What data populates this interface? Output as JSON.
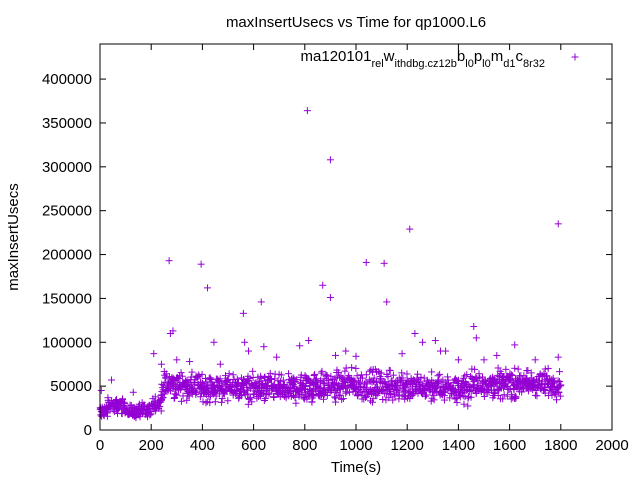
{
  "chart_data": {
    "type": "scatter",
    "title": "maxInsertUsecs vs Time for qp1000.L6",
    "xlabel": "Time(s)",
    "ylabel": "maxInsertUsecs",
    "xlim": [
      0,
      2000
    ],
    "ylim": [
      0,
      440000
    ],
    "x_ticks": [
      0,
      200,
      400,
      600,
      800,
      1000,
      1200,
      1400,
      1600,
      1800,
      2000
    ],
    "x_tick_labels": [
      "0",
      "200",
      "400",
      "600",
      "800",
      "1000",
      "1200",
      "1400",
      "1600",
      "1800",
      "2000"
    ],
    "y_ticks": [
      0,
      50000,
      100000,
      150000,
      200000,
      250000,
      300000,
      350000,
      400000
    ],
    "y_tick_labels": [
      "0",
      "50000",
      "100000",
      "150000",
      "200000",
      "250000",
      "300000",
      "350000",
      "400000"
    ],
    "legend_position": "top-right",
    "series": [
      {
        "name": "ma120101_rel_withdbg.cz12b_bl0_pl0_md1_c8r32",
        "legend_parts": [
          {
            "text": "ma120101",
            "sub": false
          },
          {
            "text": "rel",
            "sub": true
          },
          {
            "text": "w",
            "sub": false
          },
          {
            "text": "ithdbg.cz12b",
            "sub": true
          },
          {
            "text": "b",
            "sub": false
          },
          {
            "text": "l0",
            "sub": true
          },
          {
            "text": "p",
            "sub": false
          },
          {
            "text": "l0",
            "sub": true
          },
          {
            "text": "m",
            "sub": false
          },
          {
            "text": "d1",
            "sub": true
          },
          {
            "text": "c",
            "sub": false
          },
          {
            "text": "8r32",
            "sub": true
          }
        ],
        "marker": "+",
        "color": "#9400d3",
        "bands": [
          {
            "x_start": 0,
            "x_end": 30,
            "low": 8000,
            "high": 35000
          },
          {
            "x_start": 30,
            "x_end": 100,
            "low": 15000,
            "high": 40000
          },
          {
            "x_start": 100,
            "x_end": 200,
            "low": 10000,
            "high": 32000
          },
          {
            "x_start": 200,
            "x_end": 240,
            "low": 15000,
            "high": 45000
          },
          {
            "x_start": 240,
            "x_end": 400,
            "low": 30000,
            "high": 70000
          },
          {
            "x_start": 400,
            "x_end": 800,
            "low": 25000,
            "high": 70000
          },
          {
            "x_start": 800,
            "x_end": 1200,
            "low": 25000,
            "high": 75000
          },
          {
            "x_start": 1200,
            "x_end": 1450,
            "low": 25000,
            "high": 70000
          },
          {
            "x_start": 1450,
            "x_end": 1800,
            "low": 30000,
            "high": 75000
          }
        ],
        "outliers": [
          {
            "x": 5,
            "y": 45000
          },
          {
            "x": 45,
            "y": 57000
          },
          {
            "x": 130,
            "y": 43000
          },
          {
            "x": 210,
            "y": 87000
          },
          {
            "x": 240,
            "y": 75000
          },
          {
            "x": 270,
            "y": 193000
          },
          {
            "x": 275,
            "y": 110000
          },
          {
            "x": 285,
            "y": 113000
          },
          {
            "x": 300,
            "y": 80000
          },
          {
            "x": 350,
            "y": 78000
          },
          {
            "x": 395,
            "y": 189000
          },
          {
            "x": 420,
            "y": 162000
          },
          {
            "x": 445,
            "y": 100000
          },
          {
            "x": 470,
            "y": 75000
          },
          {
            "x": 560,
            "y": 133000
          },
          {
            "x": 565,
            "y": 100000
          },
          {
            "x": 580,
            "y": 90000
          },
          {
            "x": 630,
            "y": 146000
          },
          {
            "x": 640,
            "y": 95000
          },
          {
            "x": 690,
            "y": 83000
          },
          {
            "x": 780,
            "y": 96000
          },
          {
            "x": 810,
            "y": 364000
          },
          {
            "x": 815,
            "y": 102000
          },
          {
            "x": 870,
            "y": 165000
          },
          {
            "x": 900,
            "y": 308000
          },
          {
            "x": 900,
            "y": 151000
          },
          {
            "x": 920,
            "y": 85000
          },
          {
            "x": 960,
            "y": 90000
          },
          {
            "x": 1000,
            "y": 84000
          },
          {
            "x": 1040,
            "y": 191000
          },
          {
            "x": 1110,
            "y": 190000
          },
          {
            "x": 1120,
            "y": 146000
          },
          {
            "x": 1180,
            "y": 87000
          },
          {
            "x": 1210,
            "y": 229000
          },
          {
            "x": 1230,
            "y": 110000
          },
          {
            "x": 1260,
            "y": 100000
          },
          {
            "x": 1310,
            "y": 102000
          },
          {
            "x": 1330,
            "y": 90000
          },
          {
            "x": 1350,
            "y": 90000
          },
          {
            "x": 1400,
            "y": 80000
          },
          {
            "x": 1460,
            "y": 118000
          },
          {
            "x": 1470,
            "y": 105000
          },
          {
            "x": 1500,
            "y": 80000
          },
          {
            "x": 1550,
            "y": 85000
          },
          {
            "x": 1620,
            "y": 97000
          },
          {
            "x": 1700,
            "y": 80000
          },
          {
            "x": 1790,
            "y": 235000
          },
          {
            "x": 1790,
            "y": 83000
          }
        ]
      }
    ]
  }
}
